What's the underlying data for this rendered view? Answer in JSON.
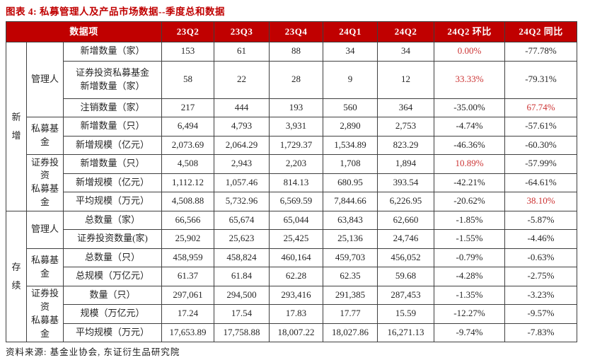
{
  "title": "图表 4: 私募管理人及产品市场数据--季度总和数据",
  "source": "资料来源: 基金业协会, 东证衍生品研究院",
  "colors": {
    "header_bg": "#c00000",
    "header_text": "#ffffff",
    "title_red": "#c00000",
    "positive_value_red": "#cc3333",
    "body_text": "#262626",
    "border": "#3f3f3f"
  },
  "table": {
    "header": [
      "数据项",
      "23Q2",
      "23Q3",
      "23Q4",
      "24Q1",
      "24Q2",
      "24Q2 环比",
      "24Q2 同比"
    ],
    "groups": [
      {
        "label": "新\n增",
        "subgroups": [
          {
            "label": "管理人",
            "rows": [
              {
                "item": "新增数量（家）",
                "values": [
                  "153",
                  "61",
                  "88",
                  "34",
                  "34"
                ],
                "mom": "0.00%",
                "yoy": "-77.78%"
              },
              {
                "item": "证券投资私募基金\n新增数量（家）",
                "tall": true,
                "values": [
                  "58",
                  "22",
                  "28",
                  "9",
                  "12"
                ],
                "mom": "33.33%",
                "yoy": "-79.31%"
              },
              {
                "item": "注销数量（家）",
                "values": [
                  "217",
                  "444",
                  "193",
                  "560",
                  "364"
                ],
                "mom": "-35.00%",
                "yoy": "67.74%"
              }
            ]
          },
          {
            "label": "私募基金",
            "rows": [
              {
                "item": "新增数量（只）",
                "values": [
                  "6,494",
                  "4,793",
                  "3,931",
                  "2,890",
                  "2,753"
                ],
                "mom": "-4.74%",
                "yoy": "-57.61%"
              },
              {
                "item": "新增规模（亿元）",
                "values": [
                  "2,073.69",
                  "2,064.29",
                  "1,729.37",
                  "1,534.89",
                  "823.29"
                ],
                "mom": "-46.36%",
                "yoy": "-60.30%"
              }
            ]
          },
          {
            "label": "证券投资\n私募基金",
            "rows": [
              {
                "item": "新增数量（只）",
                "values": [
                  "4,508",
                  "2,943",
                  "2,203",
                  "1,708",
                  "1,894"
                ],
                "mom": "10.89%",
                "yoy": "-57.99%"
              },
              {
                "item": "新增规模（亿元）",
                "values": [
                  "1,112.12",
                  "1,057.46",
                  "814.13",
                  "680.95",
                  "393.54"
                ],
                "mom": "-42.21%",
                "yoy": "-64.61%"
              },
              {
                "item": "平均规模（万元）",
                "values": [
                  "4,508.88",
                  "5,732.96",
                  "6,569.59",
                  "7,844.66",
                  "6,226.95"
                ],
                "mom": "-20.62%",
                "yoy": "38.10%"
              }
            ]
          }
        ]
      },
      {
        "label": "存\n续",
        "subgroups": [
          {
            "label": "管理人",
            "rows": [
              {
                "item": "总数量（家）",
                "values": [
                  "66,566",
                  "65,674",
                  "65,044",
                  "63,843",
                  "62,660"
                ],
                "mom": "-1.85%",
                "yoy": "-5.87%"
              },
              {
                "item": "证券投资数量(家)",
                "values": [
                  "25,902",
                  "25,623",
                  "25,425",
                  "25,136",
                  "24,746"
                ],
                "mom": "-1.55%",
                "yoy": "-4.46%"
              }
            ]
          },
          {
            "label": "私募基金",
            "rows": [
              {
                "item": "总数量（只）",
                "values": [
                  "458,959",
                  "458,824",
                  "460,164",
                  "459,703",
                  "456,052"
                ],
                "mom": "-0.79%",
                "yoy": "-0.63%"
              },
              {
                "item": "总规模（万亿元）",
                "values": [
                  "61.37",
                  "61.84",
                  "62.28",
                  "62.35",
                  "59.68"
                ],
                "mom": "-4.28%",
                "yoy": "-2.75%"
              }
            ]
          },
          {
            "label": "证券投资\n私募基金",
            "rows": [
              {
                "item": "数量（只）",
                "values": [
                  "297,061",
                  "294,500",
                  "293,416",
                  "291,385",
                  "287,453"
                ],
                "mom": "-1.35%",
                "yoy": "-3.23%"
              },
              {
                "item": "规模（万亿元）",
                "values": [
                  "17.24",
                  "17.54",
                  "17.83",
                  "17.77",
                  "15.59"
                ],
                "mom": "-12.27%",
                "yoy": "-9.57%"
              },
              {
                "item": "平均规模（万元）",
                "values": [
                  "17,653.89",
                  "17,758.88",
                  "18,007.22",
                  "18,027.86",
                  "16,271.13"
                ],
                "mom": "-9.74%",
                "yoy": "-7.83%"
              }
            ]
          }
        ]
      }
    ]
  }
}
